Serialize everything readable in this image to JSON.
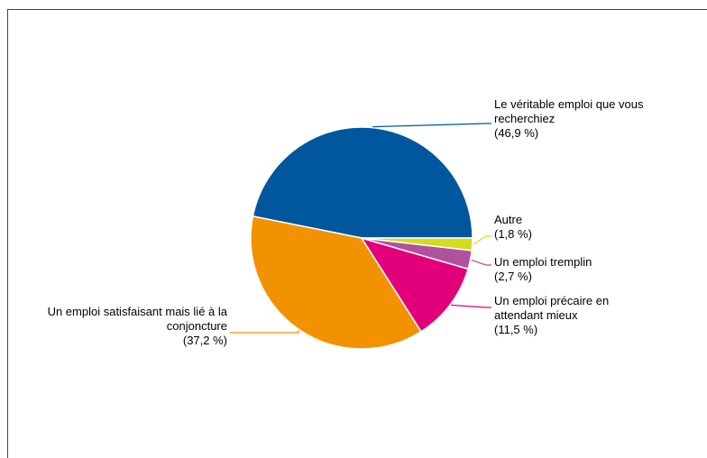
{
  "chart_data": {
    "type": "pie",
    "categories": [
      "Le véritable emploi que vous recherchiez",
      "Un emploi satisfaisant mais lié à la conjoncture",
      "Un emploi précaire en attendant mieux",
      "Un emploi tremplin",
      "Autre"
    ],
    "values": [
      46.9,
      37.2,
      11.5,
      2.7,
      1.8
    ],
    "value_labels": [
      "(46,9 %)",
      "(37,2 %)",
      "(11,5 %)",
      "(2,7 %)",
      "(1,8 %)"
    ],
    "colors": [
      "#00579e",
      "#f39200",
      "#e2007a",
      "#b0519e",
      "#d4dc20"
    ]
  }
}
